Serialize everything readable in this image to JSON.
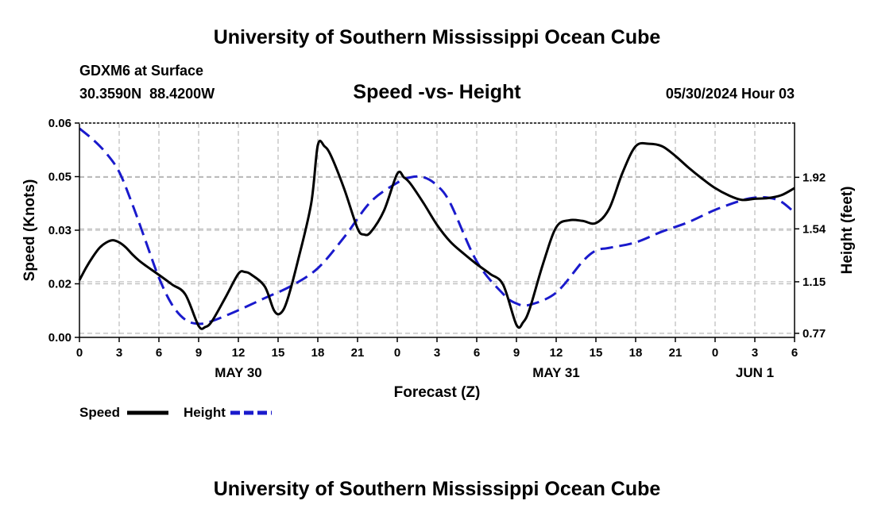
{
  "header": {
    "title": "University of Southern Mississippi Ocean Cube",
    "station": "GDXM6 at Surface",
    "coords": "30.3590N  88.4200W",
    "chart_title": "Speed -vs- Height",
    "date": "05/30/2024 Hour 03"
  },
  "footer": {
    "title": "University of Southern Mississippi Ocean Cube"
  },
  "legend": {
    "speed_label": "Speed",
    "height_label": "Height"
  },
  "colors": {
    "speed": "#000000",
    "height": "#1a1acc",
    "grid": "#bbbbbb"
  },
  "chart_data": {
    "type": "line",
    "title": "Speed -vs- Height",
    "xlabel": "Forecast (Z)",
    "ylabel_left": "Speed (Knots)",
    "ylabel_right": "Height (feet)",
    "x_range": [
      0,
      54
    ],
    "x_unit": "hours since May 30 00Z",
    "x_ticks": [
      {
        "x": 0,
        "label": "0"
      },
      {
        "x": 3,
        "label": "3"
      },
      {
        "x": 6,
        "label": "6"
      },
      {
        "x": 9,
        "label": "9"
      },
      {
        "x": 12,
        "label": "12"
      },
      {
        "x": 15,
        "label": "15"
      },
      {
        "x": 18,
        "label": "18"
      },
      {
        "x": 21,
        "label": "21"
      },
      {
        "x": 24,
        "label": "0"
      },
      {
        "x": 27,
        "label": "3"
      },
      {
        "x": 30,
        "label": "6"
      },
      {
        "x": 33,
        "label": "9"
      },
      {
        "x": 36,
        "label": "12"
      },
      {
        "x": 39,
        "label": "15"
      },
      {
        "x": 42,
        "label": "18"
      },
      {
        "x": 45,
        "label": "21"
      },
      {
        "x": 48,
        "label": "0"
      },
      {
        "x": 51,
        "label": "3"
      },
      {
        "x": 54,
        "label": "6"
      }
    ],
    "date_labels": [
      {
        "x": 12,
        "label": "MAY 30"
      },
      {
        "x": 36,
        "label": "MAY 31"
      },
      {
        "x": 51,
        "label": "JUN 1"
      }
    ],
    "y_left": {
      "range": [
        0,
        0.06
      ],
      "ticks": [
        {
          "value": 0.0,
          "label": "0.00"
        },
        {
          "value": 0.015,
          "label": "0.02"
        },
        {
          "value": 0.03,
          "label": "0.03"
        },
        {
          "value": 0.045,
          "label": "0.05"
        },
        {
          "value": 0.06,
          "label": "0.06"
        }
      ]
    },
    "y_right": {
      "range": [
        0.74,
        2.32
      ],
      "ticks": [
        {
          "value": 0.77,
          "label": "0.77"
        },
        {
          "value": 1.15,
          "label": "1.15"
        },
        {
          "value": 1.54,
          "label": "1.54"
        },
        {
          "value": 1.92,
          "label": "1.92"
        }
      ]
    },
    "series": [
      {
        "name": "Speed",
        "axis": "left",
        "style": "solid",
        "points": [
          [
            0,
            0.016
          ],
          [
            0.5,
            0.0195
          ],
          [
            1,
            0.0225
          ],
          [
            1.5,
            0.025
          ],
          [
            2,
            0.0265
          ],
          [
            2.5,
            0.0272
          ],
          [
            3,
            0.0266
          ],
          [
            3.5,
            0.0252
          ],
          [
            4,
            0.0232
          ],
          [
            4.5,
            0.0215
          ],
          [
            5,
            0.0201
          ],
          [
            6,
            0.0175
          ],
          [
            7,
            0.0148
          ],
          [
            8,
            0.012
          ],
          [
            9,
            0.0032
          ],
          [
            9.5,
            0.0029
          ],
          [
            10,
            0.0045
          ],
          [
            11,
            0.011
          ],
          [
            12,
            0.0178
          ],
          [
            12.5,
            0.0183
          ],
          [
            13,
            0.0175
          ],
          [
            14,
            0.0142
          ],
          [
            14.7,
            0.0075
          ],
          [
            15.2,
            0.0068
          ],
          [
            15.7,
            0.0105
          ],
          [
            16.5,
            0.0215
          ],
          [
            17.5,
            0.0375
          ],
          [
            18,
            0.0538
          ],
          [
            18.5,
            0.0535
          ],
          [
            19,
            0.0508
          ],
          [
            20,
            0.0415
          ],
          [
            21,
            0.0305
          ],
          [
            21.5,
            0.0288
          ],
          [
            22,
            0.0295
          ],
          [
            23,
            0.0355
          ],
          [
            24,
            0.0458
          ],
          [
            24.5,
            0.0448
          ],
          [
            25,
            0.043
          ],
          [
            26,
            0.0375
          ],
          [
            27,
            0.0315
          ],
          [
            28,
            0.0268
          ],
          [
            29,
            0.0235
          ],
          [
            30,
            0.0205
          ],
          [
            31,
            0.0178
          ],
          [
            32,
            0.0147
          ],
          [
            33,
            0.0035
          ],
          [
            33.5,
            0.0042
          ],
          [
            34,
            0.008
          ],
          [
            35,
            0.0205
          ],
          [
            36,
            0.0308
          ],
          [
            37,
            0.0328
          ],
          [
            38,
            0.0326
          ],
          [
            39,
            0.032
          ],
          [
            40,
            0.036
          ],
          [
            41,
            0.046
          ],
          [
            42,
            0.0535
          ],
          [
            43,
            0.0542
          ],
          [
            44,
            0.0535
          ],
          [
            45,
            0.0508
          ],
          [
            46,
            0.0475
          ],
          [
            47,
            0.0445
          ],
          [
            48,
            0.0418
          ],
          [
            49,
            0.0398
          ],
          [
            50,
            0.0385
          ],
          [
            51,
            0.0388
          ],
          [
            52,
            0.039
          ],
          [
            53,
            0.0398
          ],
          [
            54,
            0.0418
          ]
        ]
      },
      {
        "name": "Height",
        "axis": "right",
        "style": "dashed",
        "points": [
          [
            0,
            2.28
          ],
          [
            1,
            2.2
          ],
          [
            2,
            2.1
          ],
          [
            3,
            1.96
          ],
          [
            4,
            1.72
          ],
          [
            5,
            1.45
          ],
          [
            6,
            1.18
          ],
          [
            7,
            0.98
          ],
          [
            8,
            0.87
          ],
          [
            9,
            0.84
          ],
          [
            10,
            0.86
          ],
          [
            12,
            0.94
          ],
          [
            14,
            1.03
          ],
          [
            16,
            1.12
          ],
          [
            18,
            1.25
          ],
          [
            20,
            1.48
          ],
          [
            22,
            1.74
          ],
          [
            24,
            1.88
          ],
          [
            25,
            1.92
          ],
          [
            26,
            1.92
          ],
          [
            27,
            1.86
          ],
          [
            28,
            1.73
          ],
          [
            30,
            1.3
          ],
          [
            32,
            1.06
          ],
          [
            33,
            0.99
          ],
          [
            34,
            0.98
          ],
          [
            36,
            1.07
          ],
          [
            38,
            1.3
          ],
          [
            39,
            1.38
          ],
          [
            40,
            1.4
          ],
          [
            42,
            1.44
          ],
          [
            44,
            1.52
          ],
          [
            46,
            1.59
          ],
          [
            48,
            1.68
          ],
          [
            50,
            1.75
          ],
          [
            51,
            1.77
          ],
          [
            52,
            1.77
          ],
          [
            53,
            1.74
          ],
          [
            54,
            1.66
          ]
        ]
      }
    ]
  }
}
